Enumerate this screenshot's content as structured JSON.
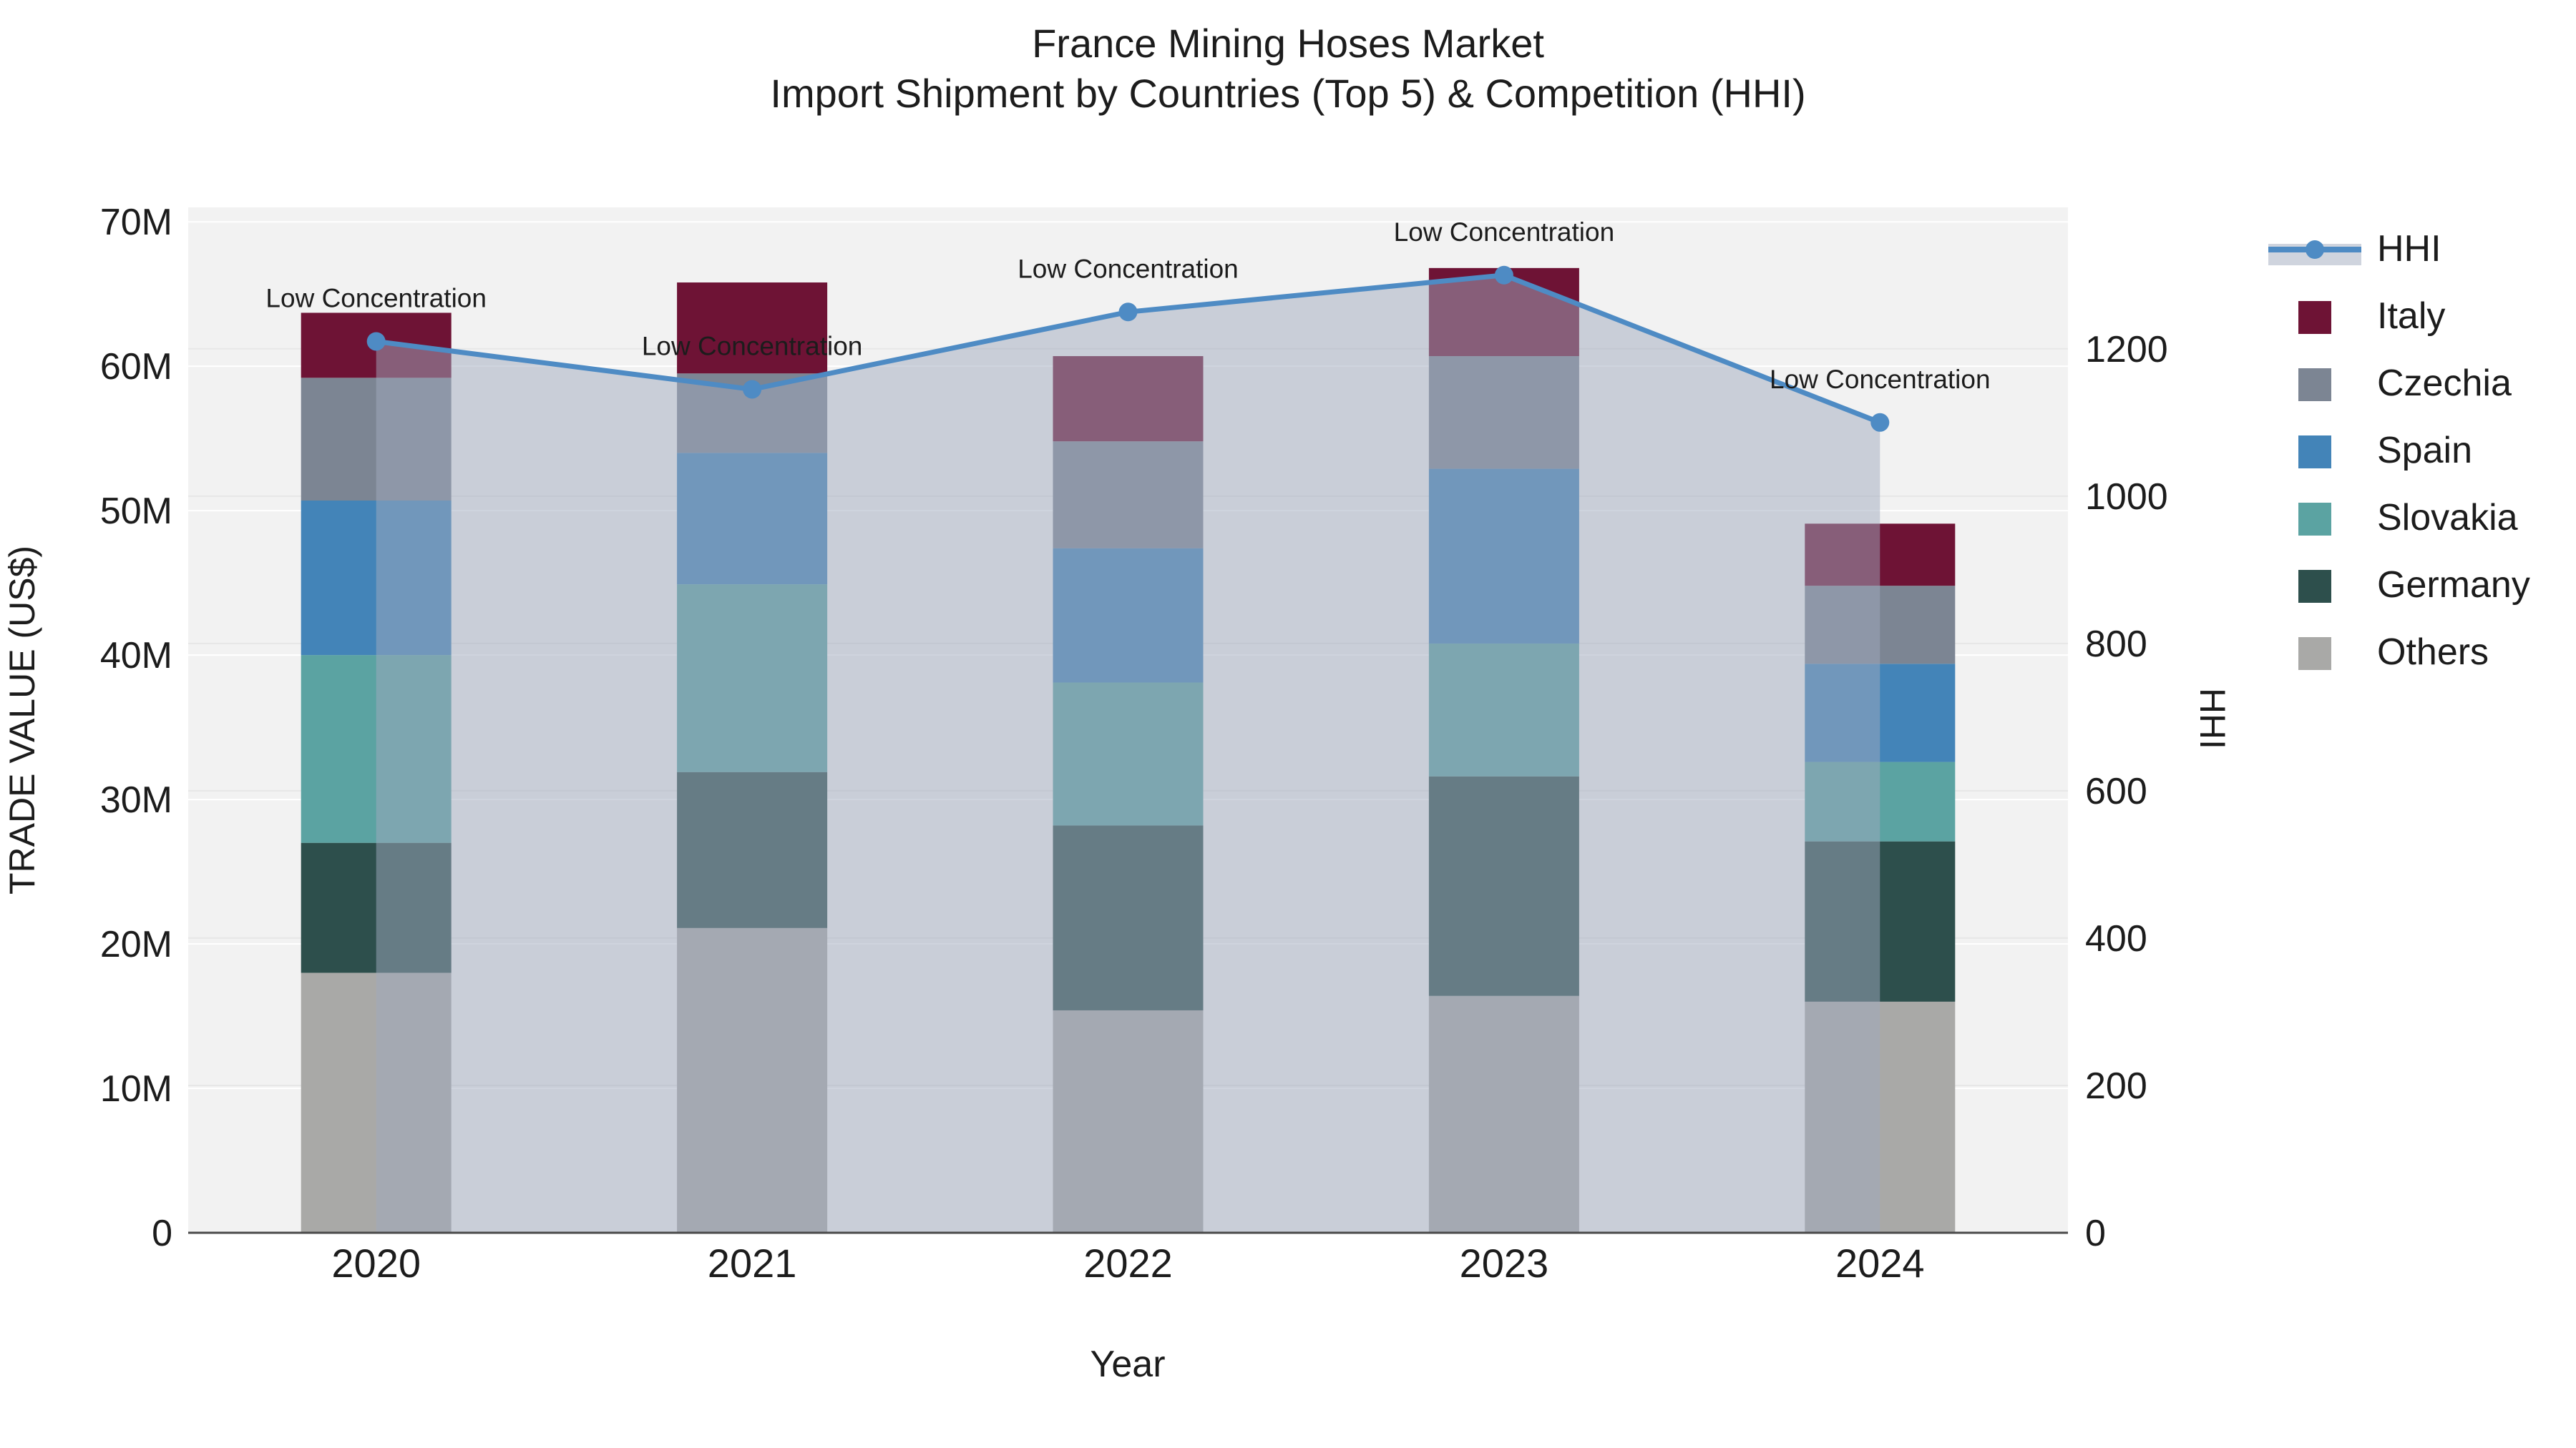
{
  "title": {
    "line1": "France Mining Hoses Market",
    "line2": "Import Shipment by Countries (Top 5) & Competition (HHI)"
  },
  "axes": {
    "x_title": "Year",
    "y_left_title": "TRADE VALUE (US$)",
    "y_right_title": "HHI",
    "y_left_ticks": [
      "0",
      "10M",
      "20M",
      "30M",
      "40M",
      "50M",
      "60M",
      "70M"
    ],
    "y_right_ticks": [
      "0",
      "200",
      "400",
      "600",
      "800",
      "1000",
      "1200"
    ],
    "y_left_max_m": 71,
    "y_right_max": 1392
  },
  "chart_data": {
    "type": "combo: stacked bar (left axis) + line with markers and area fill (right axis)",
    "title": "France Mining Hoses Market — Import Shipment by Countries (Top 5) & Competition (HHI)",
    "xlabel": "Year",
    "ylabel_left": "TRADE VALUE (US$)",
    "ylabel_right": "HHI",
    "categories": [
      "2020",
      "2021",
      "2022",
      "2023",
      "2024"
    ],
    "stack_order_bottom_to_top": [
      "Others",
      "Germany",
      "Slovakia",
      "Spain",
      "Czechia",
      "Italy"
    ],
    "series": [
      {
        "name": "Others",
        "axis": "left",
        "unit": "M US$",
        "values": [
          18.0,
          21.1,
          15.4,
          16.4,
          16.0
        ]
      },
      {
        "name": "Germany",
        "axis": "left",
        "unit": "M US$",
        "values": [
          9.0,
          10.8,
          12.8,
          15.2,
          11.1
        ]
      },
      {
        "name": "Slovakia",
        "axis": "left",
        "unit": "M US$",
        "values": [
          13.0,
          13.0,
          9.9,
          9.2,
          5.5
        ]
      },
      {
        "name": "Spain",
        "axis": "left",
        "unit": "M US$",
        "values": [
          10.7,
          9.1,
          9.3,
          12.1,
          6.8
        ]
      },
      {
        "name": "Czechia",
        "axis": "left",
        "unit": "M US$",
        "values": [
          8.5,
          5.5,
          7.4,
          7.8,
          5.4
        ]
      },
      {
        "name": "Italy",
        "axis": "left",
        "unit": "M US$",
        "values": [
          4.5,
          6.3,
          5.9,
          6.1,
          4.3
        ]
      }
    ],
    "bar_totals_m": [
      63.7,
      65.8,
      60.7,
      66.8,
      49.1
    ],
    "hhi": {
      "name": "HHI",
      "axis": "right",
      "values": [
        1210,
        1145,
        1250,
        1300,
        1100
      ]
    },
    "annotations": [
      "Low Concentration",
      "Low Concentration",
      "Low Concentration",
      "Low Concentration",
      "Low Concentration"
    ],
    "ylim_left_m": [
      0,
      71
    ],
    "ylim_right": [
      0,
      1392
    ],
    "grid": true,
    "legend_position": "right"
  },
  "legend": {
    "items": [
      {
        "label": "HHI",
        "swatch": "line"
      },
      {
        "label": "Italy",
        "swatch": "box"
      },
      {
        "label": "Czechia",
        "swatch": "box"
      },
      {
        "label": "Spain",
        "swatch": "box"
      },
      {
        "label": "Slovakia",
        "swatch": "box"
      },
      {
        "label": "Germany",
        "swatch": "box"
      },
      {
        "label": "Others",
        "swatch": "box"
      }
    ]
  },
  "colors": {
    "Italy": "#6e1335",
    "Czechia": "#7c8593",
    "Spain": "#4384b8",
    "Slovakia": "#5ba3a2",
    "Germany": "#2d4f4c",
    "Others": "#a9a9a7",
    "HHI": "#4e8bc4",
    "area_fill": "rgba(160,170,190,0.5)",
    "plot_bg": "#f2f2f2",
    "grid_left": "#ffffff",
    "grid_right": "#e7e7e7",
    "baseline": "#4a4a4a",
    "text": "#1c1c1c"
  }
}
